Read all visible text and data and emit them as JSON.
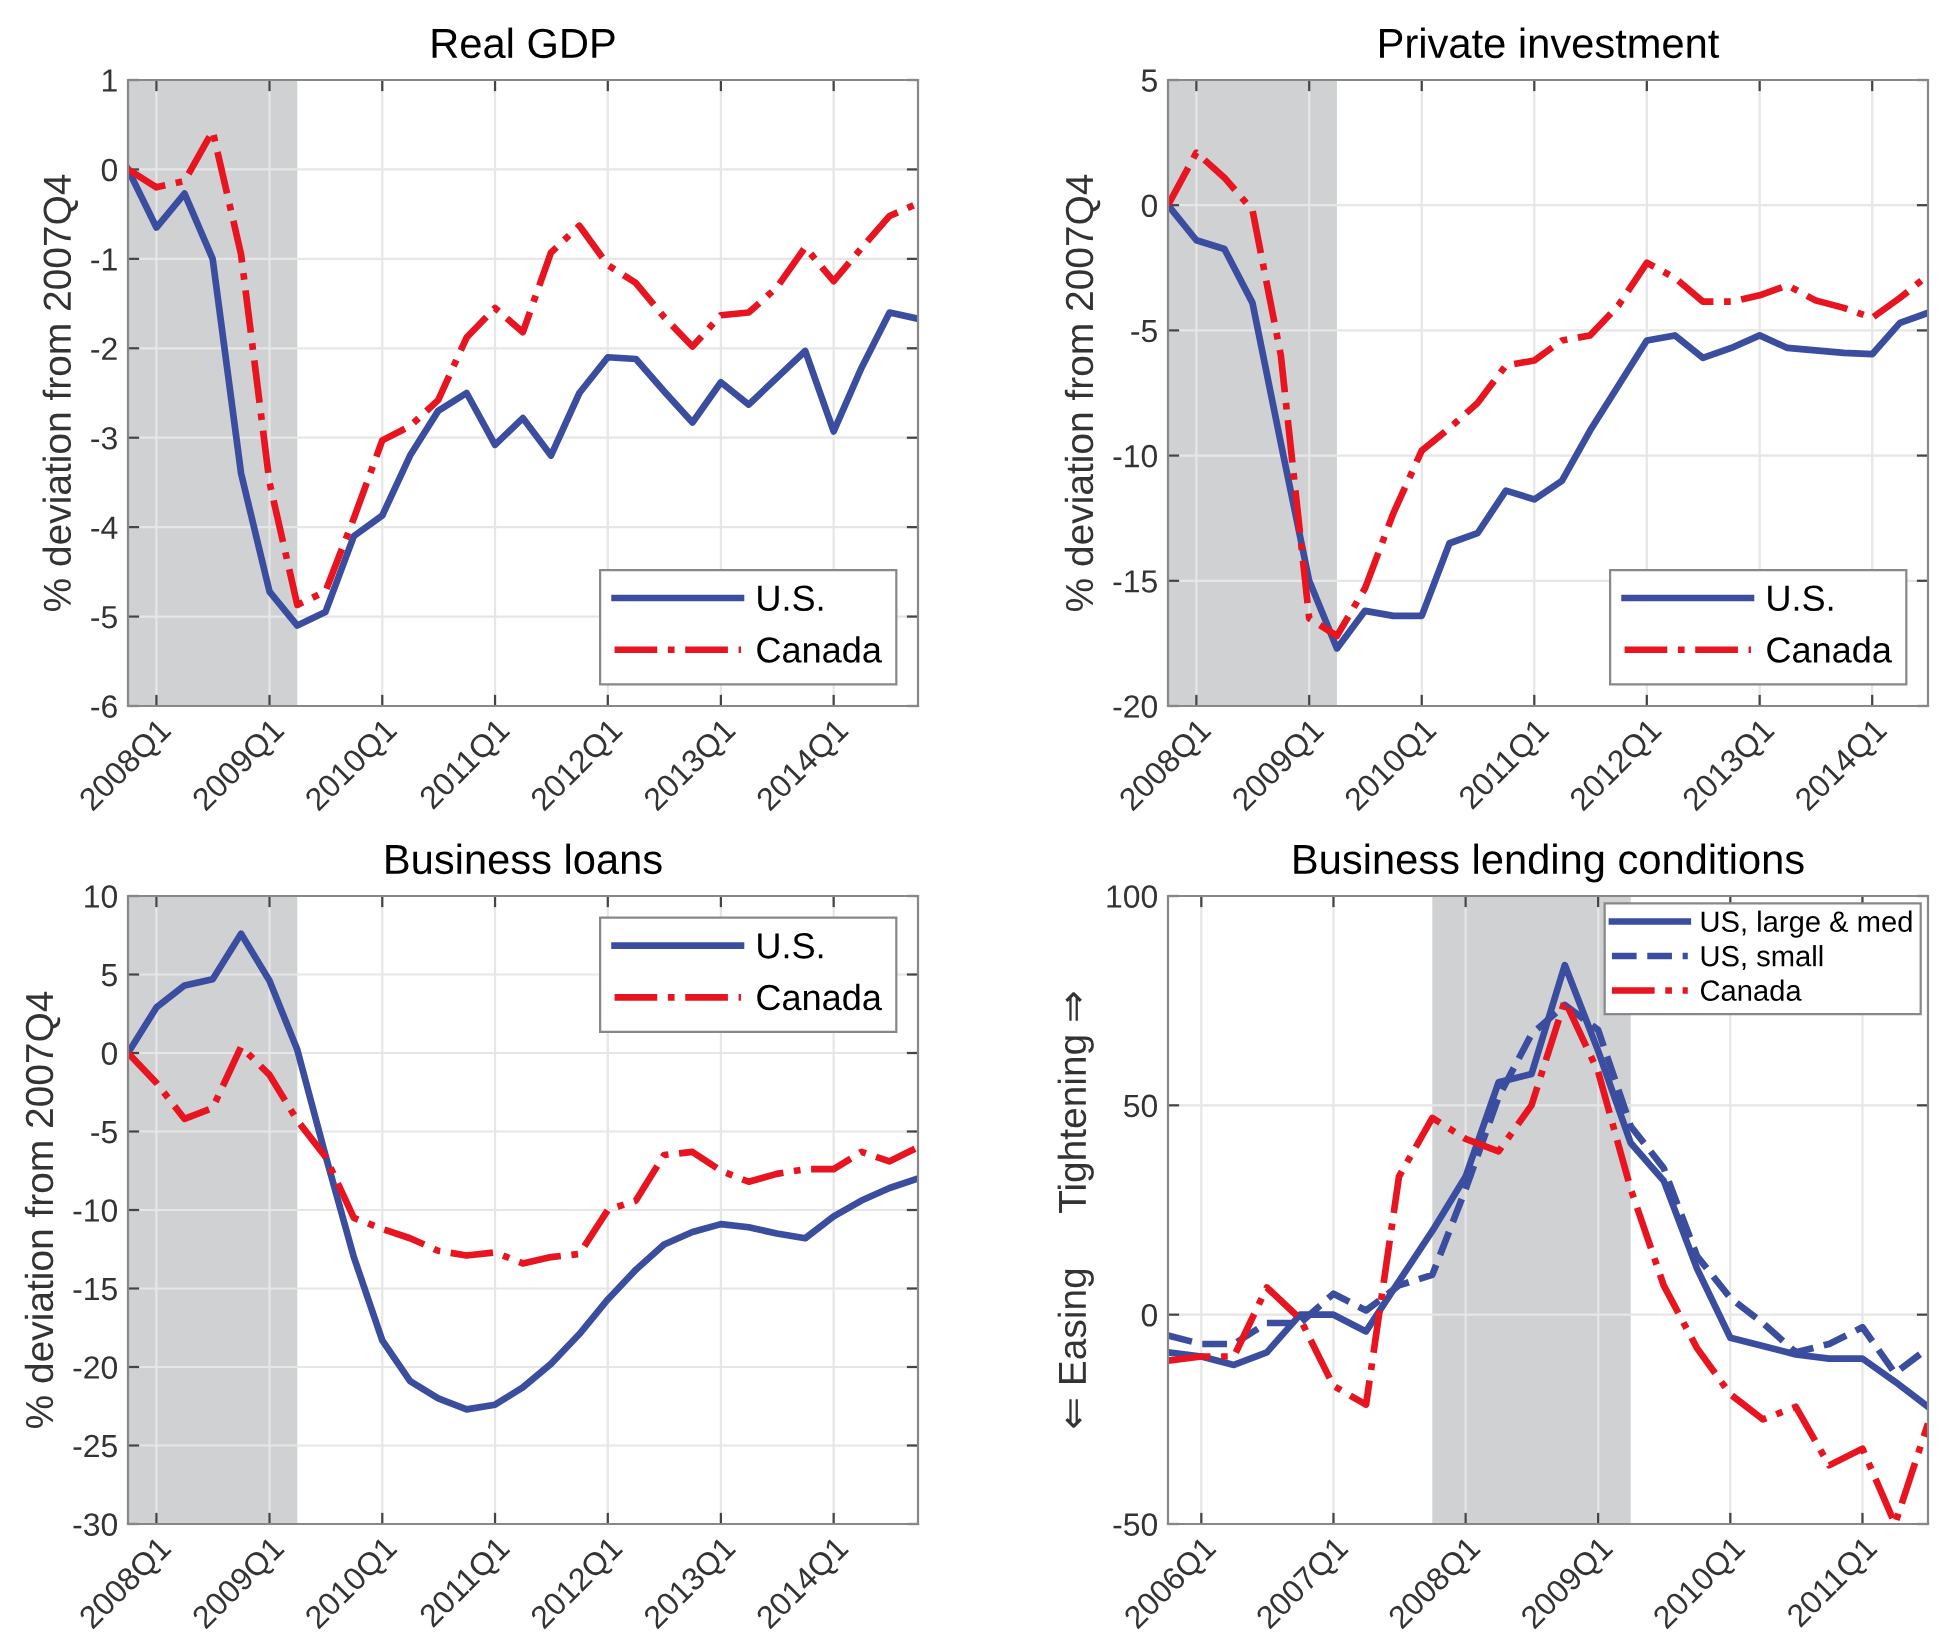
{
  "chart_data": [
    {
      "type": "line",
      "title": "Real GDP",
      "ylabel": "% deviation from 2007Q4",
      "xlim": [
        "2007-10",
        "2014-10"
      ],
      "ylim": [
        -6,
        1
      ],
      "yticks": [
        -6,
        -5,
        -4,
        -3,
        -2,
        -1,
        0,
        1
      ],
      "xticks": [
        {
          "value": "2008-01",
          "label": "2008Q1"
        },
        {
          "value": "2009-01",
          "label": "2009Q1"
        },
        {
          "value": "2010-01",
          "label": "2010Q1"
        },
        {
          "value": "2011-01",
          "label": "2011Q1"
        },
        {
          "value": "2012-01",
          "label": "2012Q1"
        },
        {
          "value": "2013-01",
          "label": "2013Q1"
        },
        {
          "value": "2014-01",
          "label": "2014Q1"
        }
      ],
      "x": [
        "2007-10",
        "2008-01",
        "2008-04",
        "2008-07",
        "2008-10",
        "2009-01",
        "2009-04",
        "2009-07",
        "2009-10",
        "2010-01",
        "2010-04",
        "2010-07",
        "2010-10",
        "2011-01",
        "2011-04",
        "2011-07",
        "2011-10",
        "2012-01",
        "2012-04",
        "2012-07",
        "2012-10",
        "2013-01",
        "2013-04",
        "2013-07",
        "2013-10",
        "2014-01",
        "2014-04",
        "2014-07",
        "2014-10"
      ],
      "series": [
        {
          "name": "U.S.",
          "color": "#3a4d9f",
          "line_style": "solid",
          "values": [
            0,
            -0.65,
            -0.27,
            -1.0,
            -3.4,
            -4.72,
            -5.1,
            -4.95,
            -4.1,
            -3.87,
            -3.2,
            -2.7,
            -2.5,
            -3.08,
            -2.78,
            -3.2,
            -2.5,
            -2.1,
            -2.12,
            -2.48,
            -2.83,
            -2.38,
            -2.63,
            -2.33,
            -2.03,
            -2.93,
            -2.22,
            -1.6,
            -1.67
          ]
        },
        {
          "name": "Canada",
          "color": "#e8141f",
          "line_style": "dashdot",
          "values": [
            0,
            -0.2,
            -0.13,
            0.43,
            -0.95,
            -3.5,
            -4.87,
            -4.72,
            -3.9,
            -3.03,
            -2.87,
            -2.58,
            -1.88,
            -1.55,
            -1.82,
            -0.93,
            -0.63,
            -1.07,
            -1.27,
            -1.65,
            -1.98,
            -1.63,
            -1.6,
            -1.32,
            -0.87,
            -1.25,
            -0.88,
            -0.52,
            -0.38
          ]
        }
      ],
      "bands": [
        {
          "axis": "x",
          "from": "2007-10",
          "to": "2009-04",
          "color": "#d0d1d3"
        }
      ],
      "grid": true,
      "legend": "bottom right"
    },
    {
      "type": "line",
      "title": "Private investment",
      "ylabel": "% deviation from 2007Q4",
      "xlim": [
        "2007-10",
        "2014-07"
      ],
      "ylim": [
        -20,
        5
      ],
      "yticks": [
        -20,
        -15,
        -10,
        -5,
        0,
        5
      ],
      "xticks": [
        {
          "value": "2008-01",
          "label": "2008Q1"
        },
        {
          "value": "2009-01",
          "label": "2009Q1"
        },
        {
          "value": "2010-01",
          "label": "2010Q1"
        },
        {
          "value": "2011-01",
          "label": "2011Q1"
        },
        {
          "value": "2012-01",
          "label": "2012Q1"
        },
        {
          "value": "2013-01",
          "label": "2013Q1"
        },
        {
          "value": "2014-01",
          "label": "2014Q1"
        }
      ],
      "x": [
        "2007-10",
        "2008-01",
        "2008-04",
        "2008-07",
        "2008-10",
        "2009-01",
        "2009-04",
        "2009-07",
        "2009-10",
        "2010-01",
        "2010-04",
        "2010-07",
        "2010-10",
        "2011-01",
        "2011-04",
        "2011-07",
        "2011-10",
        "2012-01",
        "2012-04",
        "2012-07",
        "2012-10",
        "2013-01",
        "2013-04",
        "2013-07",
        "2013-10",
        "2014-01",
        "2014-04",
        "2014-07"
      ],
      "series": [
        {
          "name": "U.S.",
          "color": "#3a4d9f",
          "line_style": "solid",
          "values": [
            0,
            -1.4,
            -1.75,
            -3.9,
            -9.5,
            -15.0,
            -17.7,
            -16.2,
            -16.4,
            -16.4,
            -13.5,
            -13.1,
            -11.4,
            -11.75,
            -11.0,
            -9.0,
            -7.2,
            -5.4,
            -5.2,
            -6.1,
            -5.7,
            -5.2,
            -5.7,
            -5.8,
            -5.9,
            -5.95,
            -4.7,
            -4.3
          ]
        },
        {
          "name": "Canada",
          "color": "#e8141f",
          "line_style": "dashdot",
          "values": [
            0,
            2.1,
            1.1,
            -0.2,
            -6.0,
            -16.5,
            -17.2,
            -15.3,
            -12.3,
            -9.8,
            -8.9,
            -7.9,
            -6.4,
            -6.2,
            -5.4,
            -5.2,
            -4.0,
            -2.3,
            -2.9,
            -3.85,
            -3.85,
            -3.6,
            -3.2,
            -3.8,
            -4.1,
            -4.5,
            -3.7,
            -2.8
          ]
        }
      ],
      "bands": [
        {
          "axis": "x",
          "from": "2007-10",
          "to": "2009-04",
          "color": "#d0d1d3"
        }
      ],
      "grid": true,
      "legend": "bottom right"
    },
    {
      "type": "line",
      "title": "Business loans",
      "ylabel": "% deviation from 2007Q4",
      "xlim": [
        "2007-10",
        "2014-10"
      ],
      "ylim": [
        -30,
        10
      ],
      "yticks": [
        -30,
        -25,
        -20,
        -15,
        -10,
        -5,
        0,
        5,
        10
      ],
      "xticks": [
        {
          "value": "2008-01",
          "label": "2008Q1"
        },
        {
          "value": "2009-01",
          "label": "2009Q1"
        },
        {
          "value": "2010-01",
          "label": "2010Q1"
        },
        {
          "value": "2011-01",
          "label": "2011Q1"
        },
        {
          "value": "2012-01",
          "label": "2012Q1"
        },
        {
          "value": "2013-01",
          "label": "2013Q1"
        },
        {
          "value": "2014-01",
          "label": "2014Q1"
        }
      ],
      "x": [
        "2007-10",
        "2008-01",
        "2008-04",
        "2008-07",
        "2008-10",
        "2009-01",
        "2009-04",
        "2009-07",
        "2009-10",
        "2010-01",
        "2010-04",
        "2010-07",
        "2010-10",
        "2011-01",
        "2011-04",
        "2011-07",
        "2011-10",
        "2012-01",
        "2012-04",
        "2012-07",
        "2012-10",
        "2013-01",
        "2013-04",
        "2013-07",
        "2013-10",
        "2014-01",
        "2014-04",
        "2014-07",
        "2014-10"
      ],
      "series": [
        {
          "name": "U.S.",
          "color": "#3a4d9f",
          "line_style": "solid",
          "values": [
            0,
            2.9,
            4.3,
            4.7,
            7.6,
            4.6,
            0.2,
            -6.5,
            -13.0,
            -18.3,
            -20.9,
            -22.0,
            -22.7,
            -22.4,
            -21.3,
            -19.8,
            -17.9,
            -15.7,
            -13.8,
            -12.2,
            -11.4,
            -10.9,
            -11.1,
            -11.5,
            -11.8,
            -10.4,
            -9.4,
            -8.6,
            -8.0
          ]
        },
        {
          "name": "Canada",
          "color": "#e8141f",
          "line_style": "dashdot",
          "values": [
            0,
            -1.9,
            -4.2,
            -3.5,
            0.4,
            -1.4,
            -4.3,
            -6.6,
            -10.5,
            -11.2,
            -11.8,
            -12.6,
            -12.9,
            -12.7,
            -13.4,
            -13.0,
            -12.8,
            -10.0,
            -9.4,
            -6.5,
            -6.3,
            -7.5,
            -8.2,
            -7.7,
            -7.4,
            -7.4,
            -6.3,
            -6.9,
            -6.0
          ]
        }
      ],
      "bands": [
        {
          "axis": "x",
          "from": "2007-10",
          "to": "2009-04",
          "color": "#d0d1d3"
        }
      ],
      "grid": true,
      "legend": "top right"
    },
    {
      "type": "line",
      "title": "Business lending conditions",
      "ylabel": "⇐ Easing     Tightening ⇒",
      "xlim": [
        "2005-10",
        "2011-07"
      ],
      "ylim": [
        -50,
        100
      ],
      "yticks": [
        -50,
        0,
        50,
        100
      ],
      "xticks": [
        {
          "value": "2006-01",
          "label": "2006Q1"
        },
        {
          "value": "2007-01",
          "label": "2007Q1"
        },
        {
          "value": "2008-01",
          "label": "2008Q1"
        },
        {
          "value": "2009-01",
          "label": "2009Q1"
        },
        {
          "value": "2010-01",
          "label": "2010Q1"
        },
        {
          "value": "2011-01",
          "label": "2011Q1"
        }
      ],
      "x": [
        "2005-10",
        "2006-01",
        "2006-04",
        "2006-07",
        "2006-10",
        "2007-01",
        "2007-04",
        "2007-07",
        "2007-10",
        "2008-01",
        "2008-04",
        "2008-07",
        "2008-10",
        "2009-01",
        "2009-04",
        "2009-07",
        "2009-10",
        "2010-01",
        "2010-04",
        "2010-07",
        "2010-10",
        "2011-01",
        "2011-04",
        "2011-07"
      ],
      "series": [
        {
          "name": "US, large & med",
          "color": "#3a4d9f",
          "line_style": "solid",
          "values": [
            -9,
            -10,
            -12,
            -9,
            0,
            0,
            -4,
            8,
            20,
            33,
            55.5,
            57.5,
            83.5,
            63,
            41,
            32,
            11,
            -5.5,
            -7.5,
            -9.5,
            -10.5,
            -10.5,
            -16,
            -22
          ]
        },
        {
          "name": "US, small",
          "color": "#3a4d9f",
          "line_style": "dashed",
          "values": [
            -5,
            -7,
            -7,
            -2,
            -2,
            5,
            1,
            7,
            9.5,
            30,
            52,
            67,
            74,
            68,
            45,
            35,
            14,
            4,
            -2,
            -9,
            -7,
            -3,
            -14,
            -8
          ]
        },
        {
          "name": "Canada",
          "color": "#e8141f",
          "line_style": "dashdot",
          "values": [
            -11,
            -10,
            -10,
            6.5,
            -1,
            -17,
            -21.5,
            33,
            47,
            42,
            39,
            50,
            75,
            58,
            30,
            7,
            -8,
            -19,
            -25,
            -22,
            -36,
            -32,
            -50,
            -26
          ]
        }
      ],
      "bands": [
        {
          "axis": "x",
          "from": "2007-10",
          "to": "2009-04",
          "color": "#d0d1d3"
        }
      ],
      "grid": true,
      "legend": "top right"
    }
  ]
}
